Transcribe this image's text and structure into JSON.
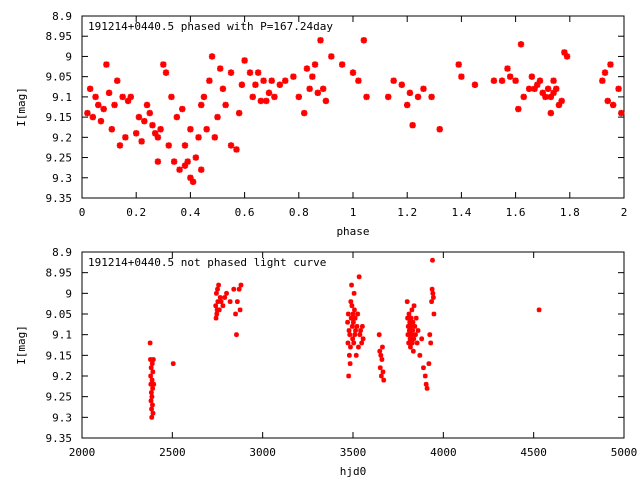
{
  "chart_data": [
    {
      "type": "scatter",
      "title": "191214+0440.5 phased with P=167.24day",
      "xlabel": "phase",
      "ylabel": "I[mag]",
      "xlim": [
        0,
        2
      ],
      "ylim": [
        9.35,
        8.9
      ],
      "y_inverted": true,
      "xticks": [
        "0",
        "0.2",
        "0.4",
        "0.6",
        "0.8",
        "1",
        "1.2",
        "1.4",
        "1.6",
        "1.8",
        "2"
      ],
      "yticks": [
        "8.9",
        "8.95",
        "9",
        "9.05",
        "9.1",
        "9.15",
        "9.2",
        "9.25",
        "9.3",
        "9.35"
      ],
      "marker_color": "#ff0000",
      "series": [
        {
          "points": [
            [
              0.02,
              9.14
            ],
            [
              0.03,
              9.08
            ],
            [
              0.04,
              9.15
            ],
            [
              0.05,
              9.1
            ],
            [
              0.06,
              9.12
            ],
            [
              0.07,
              9.16
            ],
            [
              0.08,
              9.13
            ],
            [
              0.09,
              9.02
            ],
            [
              0.1,
              9.09
            ],
            [
              0.11,
              9.18
            ],
            [
              0.12,
              9.12
            ],
            [
              0.13,
              9.06
            ],
            [
              0.14,
              9.22
            ],
            [
              0.15,
              9.1
            ],
            [
              0.16,
              9.2
            ],
            [
              0.17,
              9.11
            ],
            [
              0.18,
              9.1
            ],
            [
              0.2,
              9.19
            ],
            [
              0.21,
              9.15
            ],
            [
              0.22,
              9.21
            ],
            [
              0.23,
              9.16
            ],
            [
              0.24,
              9.12
            ],
            [
              0.25,
              9.14
            ],
            [
              0.26,
              9.17
            ],
            [
              0.27,
              9.19
            ],
            [
              0.28,
              9.2
            ],
            [
              0.28,
              9.26
            ],
            [
              0.29,
              9.18
            ],
            [
              0.3,
              9.02
            ],
            [
              0.31,
              9.04
            ],
            [
              0.32,
              9.22
            ],
            [
              0.33,
              9.1
            ],
            [
              0.34,
              9.26
            ],
            [
              0.35,
              9.15
            ],
            [
              0.36,
              9.28
            ],
            [
              0.37,
              9.13
            ],
            [
              0.38,
              9.22
            ],
            [
              0.38,
              9.27
            ],
            [
              0.39,
              9.26
            ],
            [
              0.4,
              9.18
            ],
            [
              0.4,
              9.3
            ],
            [
              0.41,
              9.31
            ],
            [
              0.42,
              9.25
            ],
            [
              0.43,
              9.2
            ],
            [
              0.44,
              9.12
            ],
            [
              0.44,
              9.28
            ],
            [
              0.45,
              9.1
            ],
            [
              0.46,
              9.18
            ],
            [
              0.47,
              9.06
            ],
            [
              0.48,
              9.0
            ],
            [
              0.49,
              9.2
            ],
            [
              0.5,
              9.15
            ],
            [
              0.51,
              9.03
            ],
            [
              0.52,
              9.08
            ],
            [
              0.53,
              9.12
            ],
            [
              0.55,
              9.04
            ],
            [
              0.55,
              9.22
            ],
            [
              0.57,
              9.23
            ],
            [
              0.58,
              9.14
            ],
            [
              0.59,
              9.07
            ],
            [
              0.6,
              9.01
            ],
            [
              0.62,
              9.04
            ],
            [
              0.63,
              9.1
            ],
            [
              0.64,
              9.07
            ],
            [
              0.65,
              9.04
            ],
            [
              0.66,
              9.11
            ],
            [
              0.67,
              9.06
            ],
            [
              0.68,
              9.11
            ],
            [
              0.69,
              9.09
            ],
            [
              0.7,
              9.06
            ],
            [
              0.71,
              9.1
            ],
            [
              0.73,
              9.07
            ],
            [
              0.75,
              9.06
            ],
            [
              0.78,
              9.05
            ],
            [
              0.8,
              9.1
            ],
            [
              0.82,
              9.14
            ],
            [
              0.83,
              9.03
            ],
            [
              0.84,
              9.08
            ],
            [
              0.85,
              9.05
            ],
            [
              0.86,
              9.02
            ],
            [
              0.87,
              9.09
            ],
            [
              0.88,
              8.96
            ],
            [
              0.89,
              9.08
            ],
            [
              0.9,
              9.11
            ],
            [
              0.92,
              9.0
            ],
            [
              0.96,
              9.02
            ],
            [
              1.0,
              9.04
            ],
            [
              1.02,
              9.06
            ],
            [
              1.04,
              8.96
            ],
            [
              1.05,
              9.1
            ],
            [
              1.13,
              9.1
            ],
            [
              1.15,
              9.06
            ],
            [
              1.18,
              9.07
            ],
            [
              1.2,
              9.12
            ],
            [
              1.21,
              9.09
            ],
            [
              1.22,
              9.17
            ],
            [
              1.24,
              9.1
            ],
            [
              1.26,
              9.08
            ],
            [
              1.29,
              9.1
            ],
            [
              1.32,
              9.18
            ],
            [
              1.39,
              9.02
            ],
            [
              1.4,
              9.05
            ],
            [
              1.45,
              9.07
            ],
            [
              1.52,
              9.06
            ],
            [
              1.55,
              9.06
            ],
            [
              1.57,
              9.03
            ],
            [
              1.58,
              9.05
            ],
            [
              1.6,
              9.06
            ],
            [
              1.61,
              9.13
            ],
            [
              1.62,
              8.97
            ],
            [
              1.63,
              9.1
            ],
            [
              1.65,
              9.08
            ],
            [
              1.66,
              9.05
            ],
            [
              1.67,
              9.08
            ],
            [
              1.68,
              9.07
            ],
            [
              1.69,
              9.06
            ],
            [
              1.7,
              9.09
            ],
            [
              1.71,
              9.1
            ],
            [
              1.72,
              9.08
            ],
            [
              1.73,
              9.14
            ],
            [
              1.73,
              9.1
            ],
            [
              1.74,
              9.06
            ],
            [
              1.74,
              9.09
            ],
            [
              1.75,
              9.08
            ],
            [
              1.76,
              9.12
            ],
            [
              1.77,
              9.11
            ],
            [
              1.78,
              8.99
            ],
            [
              1.79,
              9.0
            ],
            [
              1.92,
              9.06
            ],
            [
              1.93,
              9.04
            ],
            [
              1.94,
              9.11
            ],
            [
              1.95,
              9.02
            ],
            [
              1.96,
              9.12
            ],
            [
              1.98,
              9.08
            ],
            [
              1.99,
              9.14
            ]
          ]
        }
      ]
    },
    {
      "type": "scatter",
      "title": "191214+0440.5 not phased light curve",
      "xlabel": "hjd0",
      "ylabel": "I[mag]",
      "xlim": [
        2000,
        5000
      ],
      "ylim": [
        9.35,
        8.9
      ],
      "y_inverted": true,
      "xticks": [
        "2000",
        "2500",
        "3000",
        "3500",
        "4000",
        "4500",
        "5000"
      ],
      "yticks": [
        "8.9",
        "8.95",
        "9",
        "9.05",
        "9.1",
        "9.15",
        "9.2",
        "9.25",
        "9.3",
        "9.35"
      ],
      "marker_color": "#ff0000",
      "series": [
        {
          "points": [
            [
              2377,
              9.12
            ],
            [
              2379,
              9.16
            ],
            [
              2380,
              9.2
            ],
            [
              2381,
              9.22
            ],
            [
              2382,
              9.26
            ],
            [
              2383,
              9.18
            ],
            [
              2384,
              9.24
            ],
            [
              2385,
              9.28
            ],
            [
              2386,
              9.3
            ],
            [
              2387,
              9.25
            ],
            [
              2388,
              9.21
            ],
            [
              2389,
              9.17
            ],
            [
              2390,
              9.27
            ],
            [
              2391,
              9.23
            ],
            [
              2392,
              9.19
            ],
            [
              2393,
              9.29
            ],
            [
              2395,
              9.16
            ],
            [
              2397,
              9.22
            ],
            [
              2505,
              9.17
            ],
            [
              2740,
              9.03
            ],
            [
              2742,
              9.06
            ],
            [
              2744,
              9.0
            ],
            [
              2746,
              9.05
            ],
            [
              2748,
              9.04
            ],
            [
              2750,
              8.99
            ],
            [
              2752,
              9.02
            ],
            [
              2756,
              8.98
            ],
            [
              2760,
              9.04
            ],
            [
              2765,
              9.01
            ],
            [
              2770,
              9.02
            ],
            [
              2780,
              9.03
            ],
            [
              2790,
              9.01
            ],
            [
              2800,
              9.0
            ],
            [
              2820,
              9.02
            ],
            [
              2840,
              8.99
            ],
            [
              2850,
              9.05
            ],
            [
              2855,
              9.1
            ],
            [
              2860,
              9.02
            ],
            [
              2870,
              8.99
            ],
            [
              2875,
              9.04
            ],
            [
              2880,
              8.98
            ],
            [
              3470,
              9.07
            ],
            [
              3472,
              9.12
            ],
            [
              3474,
              9.05
            ],
            [
              3476,
              9.2
            ],
            [
              3478,
              9.09
            ],
            [
              3480,
              9.15
            ],
            [
              3482,
              9.1
            ],
            [
              3484,
              9.17
            ],
            [
              3486,
              9.13
            ],
            [
              3488,
              9.02
            ],
            [
              3490,
              9.06
            ],
            [
              3492,
              8.98
            ],
            [
              3494,
              9.03
            ],
            [
              3496,
              9.08
            ],
            [
              3498,
              9.11
            ],
            [
              3500,
              9.05
            ],
            [
              3502,
              9.07
            ],
            [
              3504,
              9.12
            ],
            [
              3506,
              9.0
            ],
            [
              3508,
              9.04
            ],
            [
              3510,
              9.1
            ],
            [
              3512,
              9.06
            ],
            [
              3514,
              9.09
            ],
            [
              3518,
              9.15
            ],
            [
              3522,
              9.08
            ],
            [
              3526,
              9.05
            ],
            [
              3530,
              9.13
            ],
            [
              3534,
              8.96
            ],
            [
              3538,
              9.1
            ],
            [
              3542,
              9.09
            ],
            [
              3548,
              9.12
            ],
            [
              3552,
              9.08
            ],
            [
              3556,
              9.11
            ],
            [
              3645,
              9.1
            ],
            [
              3648,
              9.14
            ],
            [
              3651,
              9.18
            ],
            [
              3654,
              9.15
            ],
            [
              3657,
              9.2
            ],
            [
              3660,
              9.16
            ],
            [
              3663,
              9.13
            ],
            [
              3666,
              9.19
            ],
            [
              3670,
              9.21
            ],
            [
              3800,
              9.02
            ],
            [
              3802,
              9.06
            ],
            [
              3804,
              9.1
            ],
            [
              3806,
              9.08
            ],
            [
              3808,
              9.12
            ],
            [
              3810,
              9.05
            ],
            [
              3812,
              9.09
            ],
            [
              3814,
              9.07
            ],
            [
              3816,
              9.11
            ],
            [
              3818,
              9.13
            ],
            [
              3820,
              9.08
            ],
            [
              3822,
              9.06
            ],
            [
              3824,
              9.1
            ],
            [
              3826,
              9.04
            ],
            [
              3828,
              9.12
            ],
            [
              3830,
              9.09
            ],
            [
              3832,
              9.07
            ],
            [
              3834,
              9.14
            ],
            [
              3836,
              9.11
            ],
            [
              3838,
              9.03
            ],
            [
              3842,
              9.08
            ],
            [
              3846,
              9.1
            ],
            [
              3850,
              9.06
            ],
            [
              3855,
              9.12
            ],
            [
              3860,
              9.09
            ],
            [
              3870,
              9.15
            ],
            [
              3880,
              9.11
            ],
            [
              3890,
              9.18
            ],
            [
              3900,
              9.2
            ],
            [
              3905,
              9.22
            ],
            [
              3910,
              9.23
            ],
            [
              3920,
              9.17
            ],
            [
              3925,
              9.1
            ],
            [
              3930,
              9.12
            ],
            [
              3935,
              9.02
            ],
            [
              3938,
              8.99
            ],
            [
              3940,
              8.92
            ],
            [
              3942,
              9.0
            ],
            [
              3945,
              9.01
            ],
            [
              3948,
              9.05
            ],
            [
              4530,
              9.04
            ]
          ]
        }
      ]
    }
  ]
}
